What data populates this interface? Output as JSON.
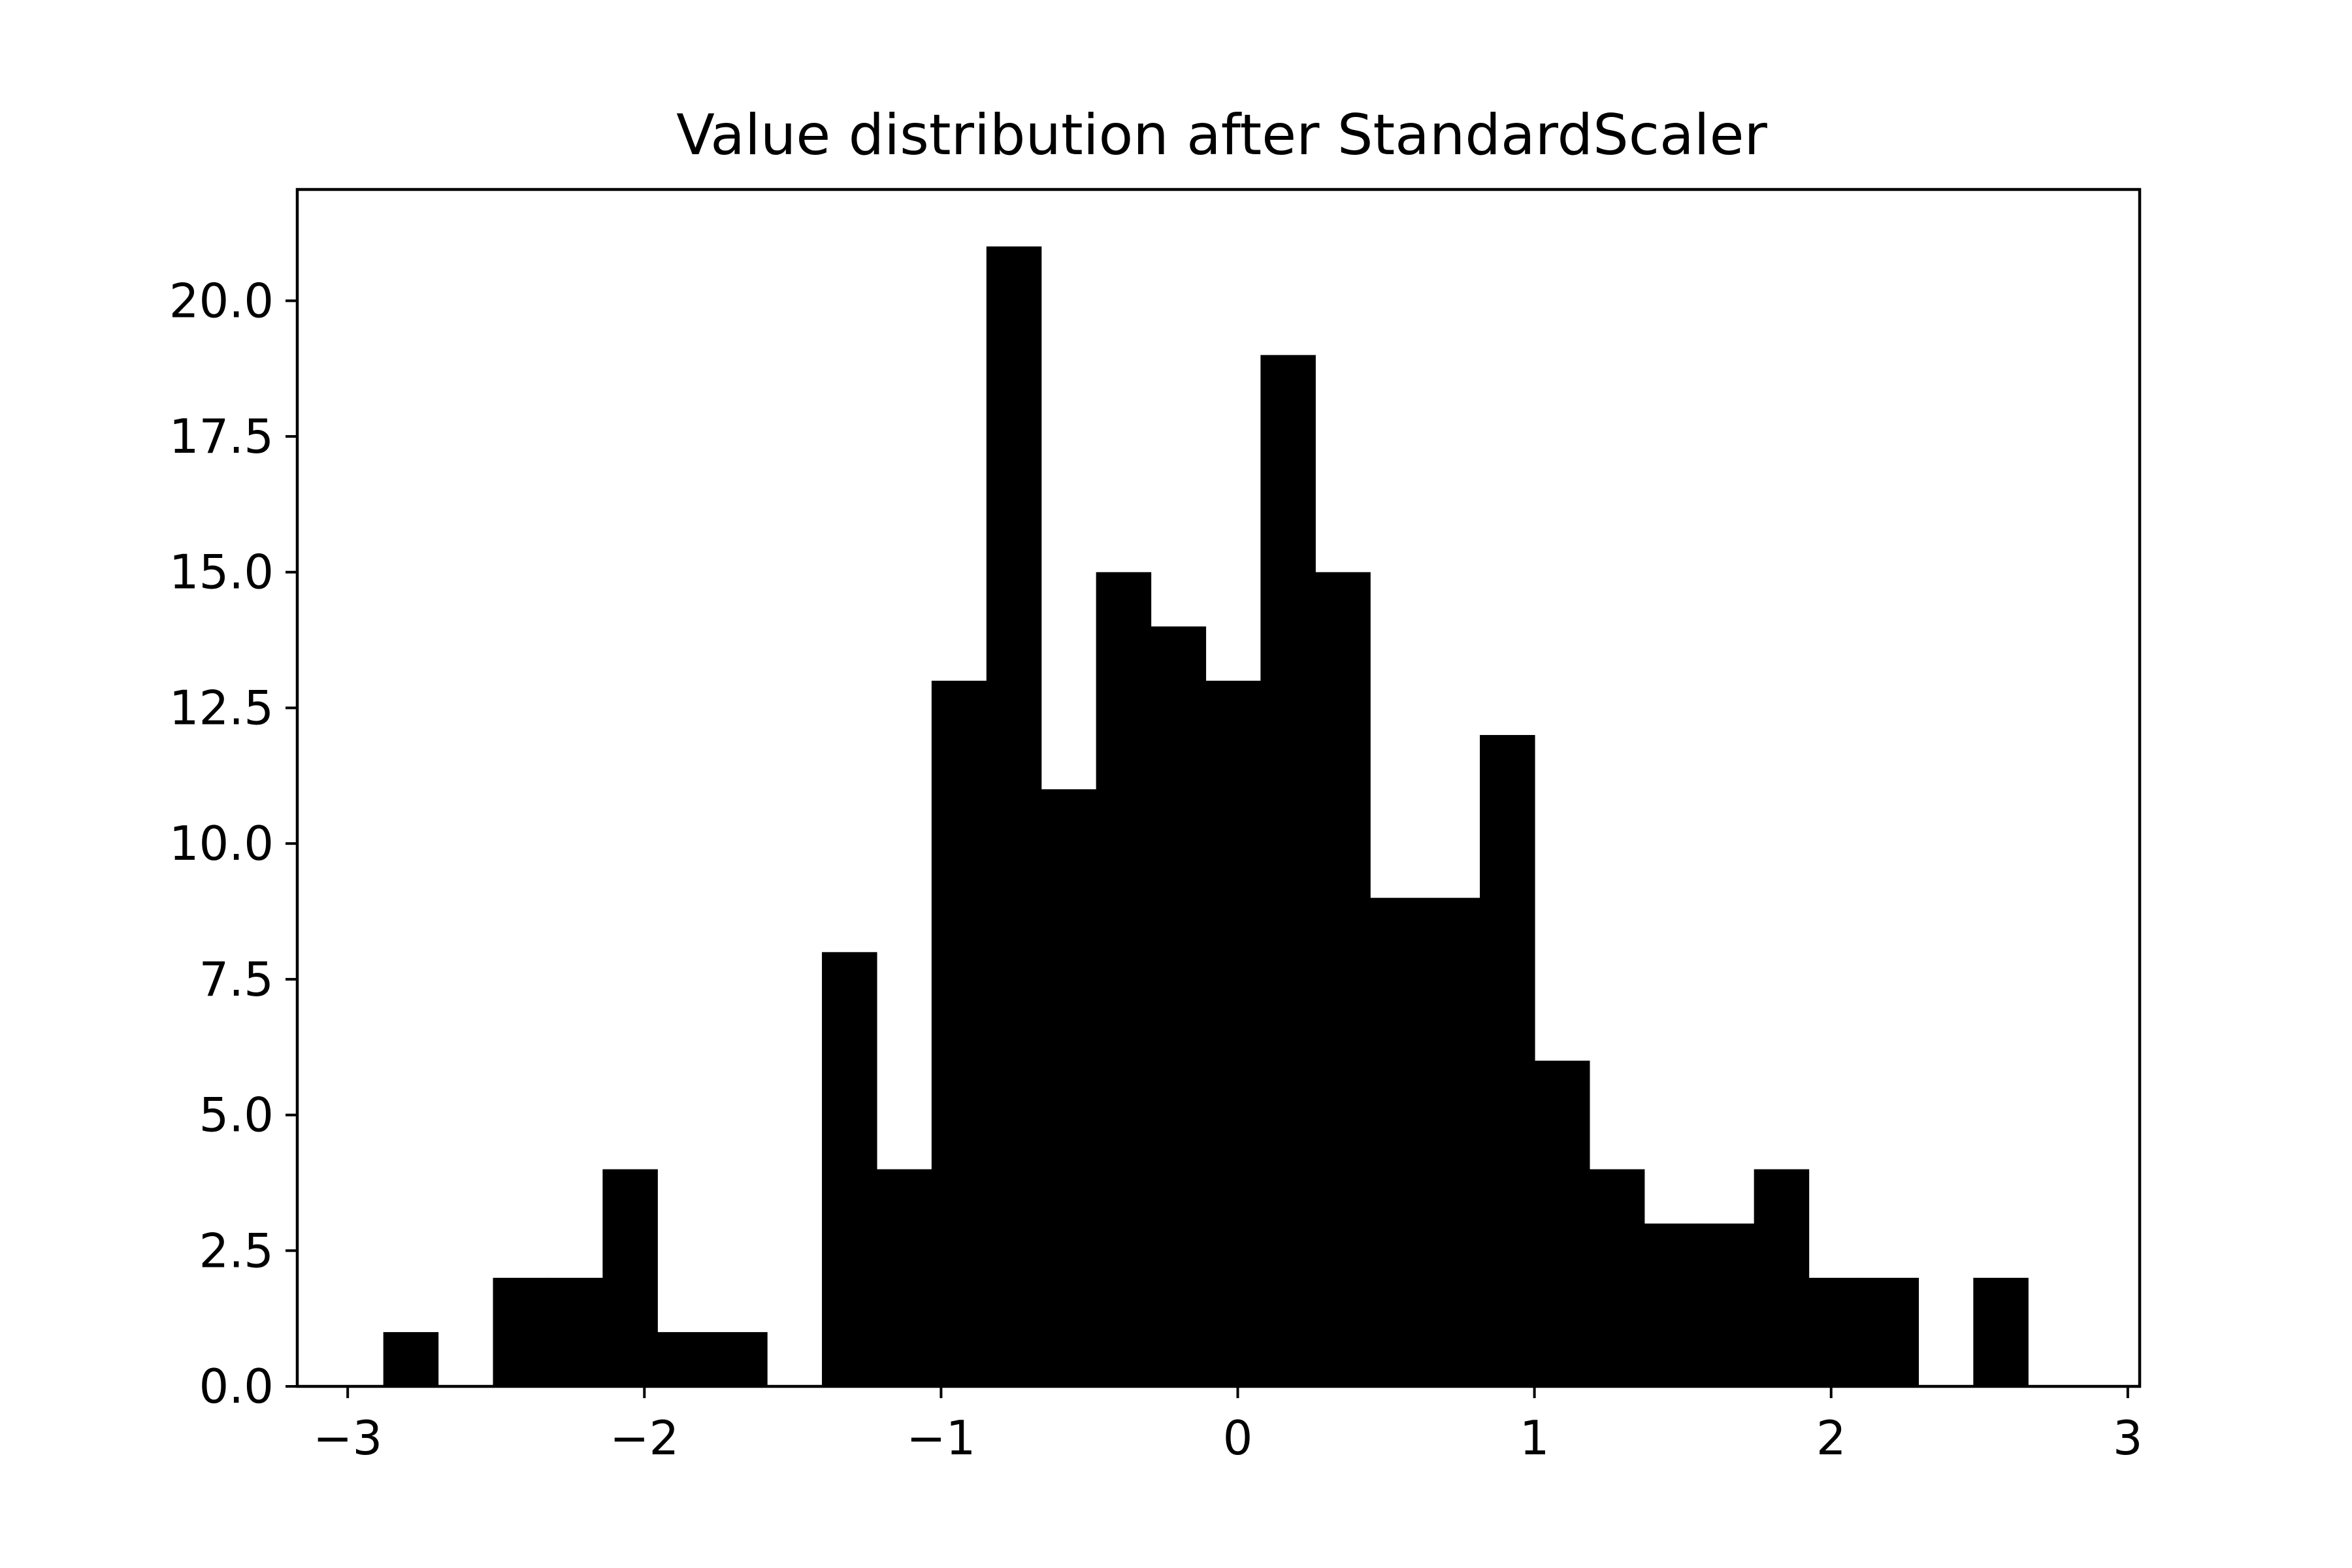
{
  "chart_data": {
    "type": "bar",
    "title": "Value distribution after StandardScaler",
    "xlabel": "",
    "ylabel": "",
    "bin_edges": [
      -2.88,
      -2.6952,
      -2.5104,
      -2.3256,
      -2.1408,
      -1.956,
      -1.7712,
      -1.5864,
      -1.4016,
      -1.2168,
      -1.032,
      -0.8472,
      -0.6624,
      -0.4776,
      -0.2928,
      -0.108,
      0.0768,
      0.2616,
      0.4464,
      0.6312,
      0.816,
      1.0008,
      1.1856,
      1.3704,
      1.5552,
      1.74,
      1.9248,
      2.1096,
      2.2944,
      2.4792,
      2.664,
      2.8488
    ],
    "values": [
      1,
      0,
      2,
      2,
      4,
      1,
      1,
      0,
      8,
      4,
      13,
      21,
      11,
      15,
      14,
      13,
      19,
      15,
      9,
      9,
      12,
      6,
      4,
      3,
      3,
      4,
      2,
      2,
      0,
      2,
      0
    ],
    "xlim": [
      -3.17,
      3.04
    ],
    "ylim": [
      0,
      22.05
    ],
    "x_ticks": [
      -3,
      -2,
      -1,
      0,
      1,
      2,
      3
    ],
    "x_tick_labels": [
      "−3",
      "−2",
      "−1",
      "0",
      "1",
      "2",
      "3"
    ],
    "y_ticks": [
      0,
      2.5,
      5,
      7.5,
      10,
      12.5,
      15,
      17.5,
      20
    ],
    "y_tick_labels": [
      "0.0",
      "2.5",
      "5.0",
      "7.5",
      "10.0",
      "12.5",
      "15.0",
      "17.5",
      "20.0"
    ],
    "bar_color": "#000000",
    "grid": false,
    "legend": "none"
  }
}
